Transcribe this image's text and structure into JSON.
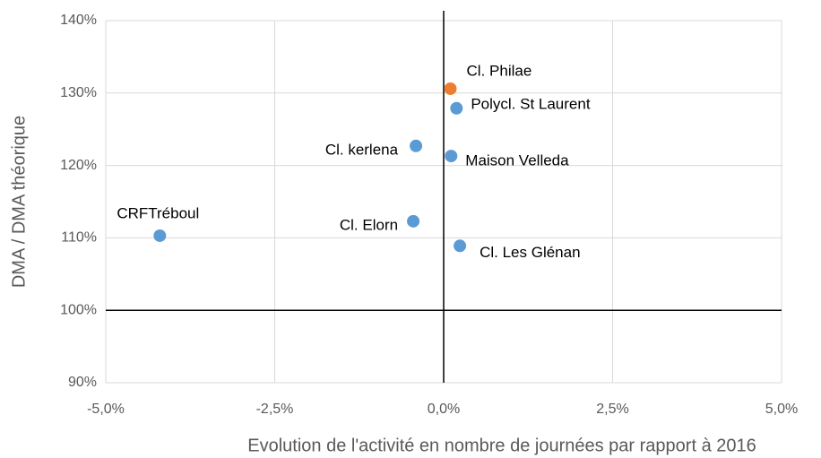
{
  "chart_data": {
    "type": "scatter",
    "x_label": "Evolution de l'activité en nombre de journées par rapport à 2016",
    "y_label": "DMA / DMA théorique",
    "labels": [
      "Cl. Philae",
      "Polycl. St Laurent",
      "Cl. kerlena",
      "Maison Velleda",
      "CRFTréboul",
      "Cl. Elorn",
      "Cl. Les Glénan"
    ],
    "x": [
      0.1,
      0.19,
      -0.41,
      0.11,
      -4.2,
      -0.45,
      0.24
    ],
    "y": [
      130.6,
      127.9,
      122.7,
      121.3,
      110.3,
      112.3,
      108.9
    ],
    "colors": [
      "#ed7d31",
      "#5b9bd5",
      "#5b9bd5",
      "#5b9bd5",
      "#5b9bd5",
      "#5b9bd5",
      "#5b9bd5"
    ],
    "xlim": [
      -5,
      5
    ],
    "xticks": [
      {
        "value": -5,
        "label": "-5,0%"
      },
      {
        "value": -2.5,
        "label": "-2,5%"
      },
      {
        "value": 0,
        "label": "0,0%"
      },
      {
        "value": 2.5,
        "label": "2,5%"
      },
      {
        "value": 5,
        "label": "5,0%"
      }
    ],
    "ylim": [
      90,
      140
    ],
    "yticks": [
      {
        "value": 90,
        "label": "90%"
      },
      {
        "value": 100,
        "label": "100%"
      },
      {
        "value": 110,
        "label": "110%"
      },
      {
        "value": 120,
        "label": "120%"
      },
      {
        "value": 130,
        "label": "130%"
      },
      {
        "value": 140,
        "label": "140%"
      }
    ],
    "axis_cross": {
      "x": 0,
      "y": 100
    },
    "grid": true
  }
}
